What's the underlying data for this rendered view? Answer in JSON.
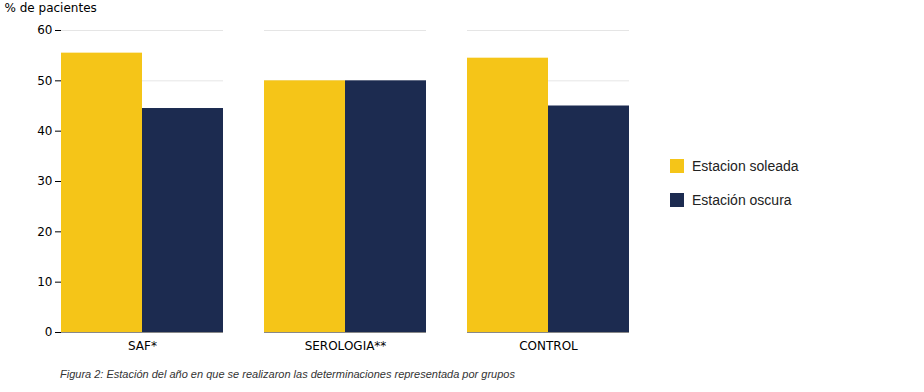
{
  "chart_data": {
    "type": "bar",
    "categories": [
      "SAF*",
      "SEROLOGIA**",
      "CONTROL"
    ],
    "series": [
      {
        "name": "Estacion soleada",
        "color": "#F5C518",
        "values": [
          55.5,
          50.0,
          54.5
        ]
      },
      {
        "name": "Estación oscura",
        "color": "#1C2B50",
        "values": [
          44.5,
          50.0,
          45.0
        ]
      }
    ],
    "ylabel": "% de pacientes",
    "ylim": [
      0,
      60
    ],
    "yticks": [
      0,
      10,
      20,
      30,
      40,
      50,
      60
    ],
    "grid": true,
    "legend": "right",
    "caption": "Figura 2: Estación del año en que se realizaron las determinaciones  representada por grupos"
  }
}
